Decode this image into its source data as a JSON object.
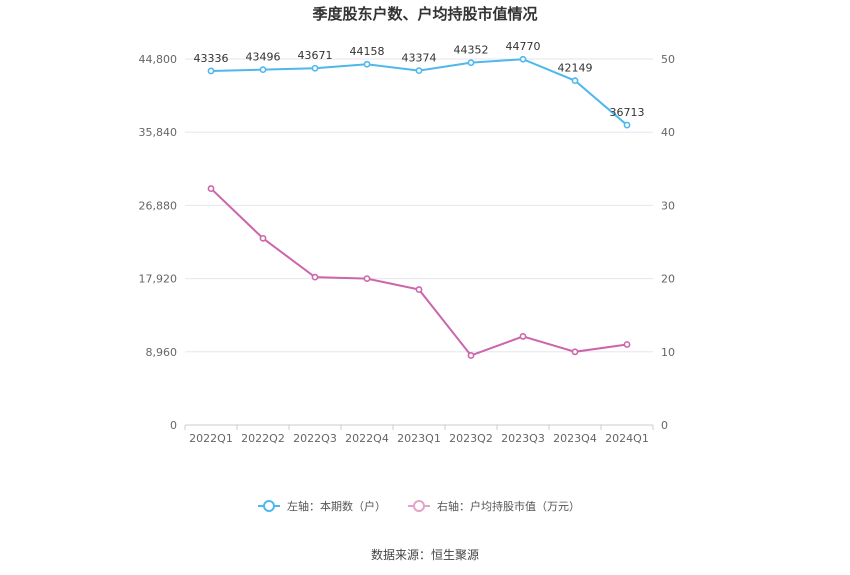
{
  "chart_data": {
    "type": "line",
    "title": "季度股东户数、户均持股市值情况",
    "categories": [
      "2022Q1",
      "2022Q2",
      "2022Q3",
      "2022Q4",
      "2023Q1",
      "2023Q2",
      "2023Q3",
      "2023Q4",
      "2024Q1"
    ],
    "left_axis": {
      "ticks": [
        "0",
        "8,960",
        "17,920",
        "26,880",
        "35,840",
        "44,800"
      ],
      "ylim": [
        0,
        44800
      ]
    },
    "right_axis": {
      "ticks": [
        "0",
        "10",
        "20",
        "30",
        "40",
        "50"
      ],
      "ylim": [
        0,
        50
      ]
    },
    "series": [
      {
        "name": "左轴：本期数（户）",
        "axis": "left",
        "color": "#4db8ec",
        "values": [
          43336,
          43496,
          43671,
          44158,
          43374,
          44352,
          44770,
          42149,
          36713
        ],
        "labels": [
          "43336",
          "43496",
          "43671",
          "44158",
          "43374",
          "44352",
          "44770",
          "42149",
          "36713"
        ]
      },
      {
        "name": "右轴：户均持股市值（万元）",
        "axis": "right",
        "color": "#cc66aa",
        "values": [
          32.3,
          25.5,
          20.2,
          20.0,
          18.5,
          9.5,
          12.1,
          10.0,
          11.0
        ]
      }
    ],
    "grid": true,
    "legend_position": "bottom"
  },
  "source": "数据来源：恒生聚源"
}
